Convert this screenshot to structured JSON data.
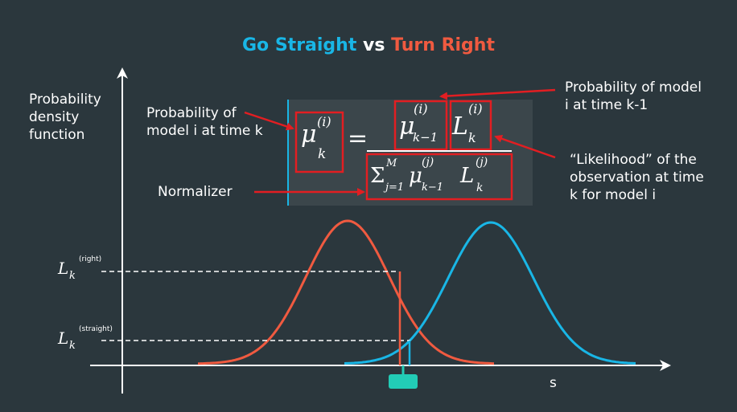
{
  "title": {
    "left": "Go Straight",
    "vs": "vs",
    "right": "Turn Right"
  },
  "colors": {
    "background": "#2b373d",
    "blue": "#19b6e6",
    "red": "#f05a40",
    "box_red": "#e21e22",
    "formula_bg": "#3b464b",
    "marker": "#22ccb6"
  },
  "labels": {
    "pdf_line1": "Probability",
    "pdf_line2": "density",
    "pdf_line3": "function",
    "prob_k_line1": "Probability of",
    "prob_k_line2": "model i at time k",
    "prob_k1_line1": "Probability of model",
    "prob_k1_line2": "i at time k-1",
    "likelihood_line1": "“Likelihood” of the",
    "likelihood_line2": "observation at time",
    "likelihood_line3": "k for model i",
    "normalizer": "Normalizer",
    "x_axis": "s"
  },
  "formula": {
    "mu": "μ",
    "L": "L",
    "sup_i": "(i)",
    "sup_j": "(j)",
    "sup_M": "M",
    "sub_k": "k",
    "sub_k1": "k−1",
    "equals": "=",
    "sigma": "Σ",
    "sub_j1": "j=1"
  },
  "y_ticks": {
    "right": {
      "L": "L",
      "k": "k",
      "sup": "(right)"
    },
    "straight": {
      "L": "L",
      "k": "k",
      "sup": "(straight)"
    }
  }
}
